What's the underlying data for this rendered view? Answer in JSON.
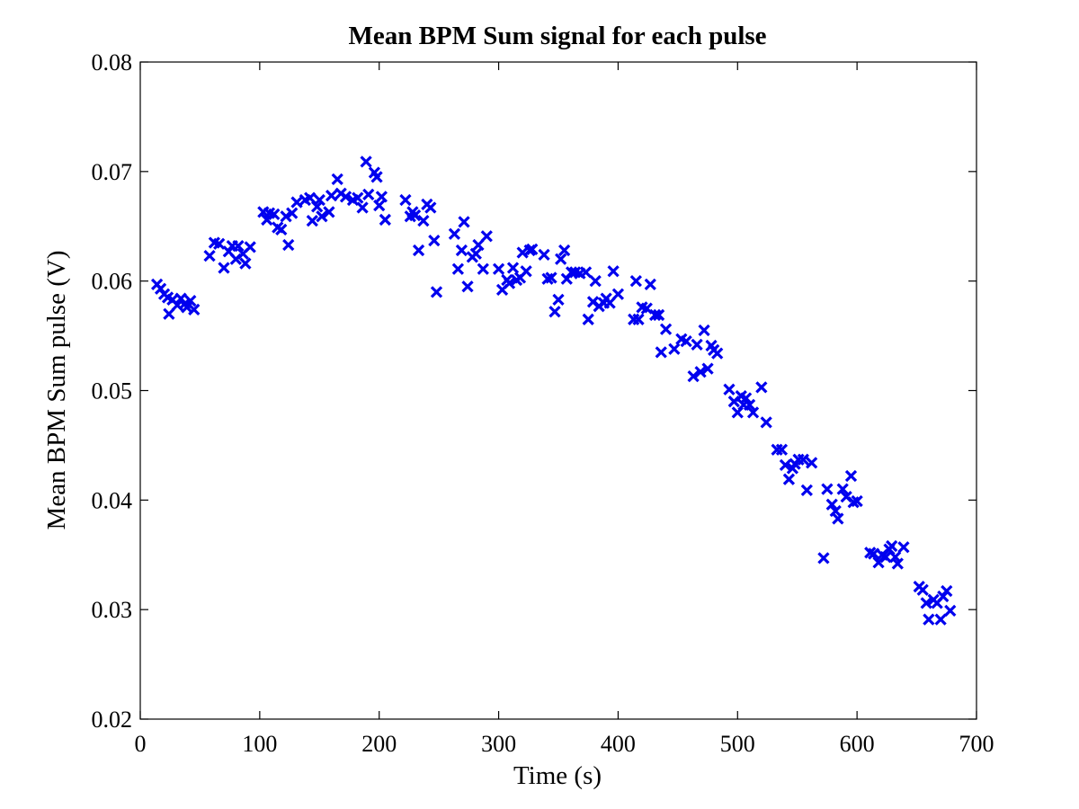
{
  "chart_data": {
    "type": "scatter",
    "title": "Mean BPM Sum signal for each pulse",
    "xlabel": "Time (s)",
    "ylabel": "Mean BPM Sum pulse (V)",
    "xlim": [
      0,
      700
    ],
    "ylim": [
      0.02,
      0.08
    ],
    "xticks": [
      "0",
      "100",
      "200",
      "300",
      "400",
      "500",
      "600",
      "700"
    ],
    "yticks": [
      "0.02",
      "0.03",
      "0.04",
      "0.05",
      "0.06",
      "0.07",
      "0.08"
    ],
    "grid": false,
    "marker": "x",
    "marker_color": "#0000ee",
    "series": [
      {
        "points": [
          [
            14,
            0.0597
          ],
          [
            17,
            0.0593
          ],
          [
            20,
            0.0588
          ],
          [
            23,
            0.0585
          ],
          [
            24,
            0.057
          ],
          [
            27,
            0.0583
          ],
          [
            31,
            0.0578
          ],
          [
            34,
            0.0584
          ],
          [
            37,
            0.0579
          ],
          [
            39,
            0.0576
          ],
          [
            42,
            0.0582
          ],
          [
            45,
            0.0574
          ],
          [
            58,
            0.0623
          ],
          [
            62,
            0.0635
          ],
          [
            66,
            0.0634
          ],
          [
            70,
            0.0612
          ],
          [
            74,
            0.0627
          ],
          [
            77,
            0.0632
          ],
          [
            80,
            0.062
          ],
          [
            82,
            0.0632
          ],
          [
            86,
            0.0625
          ],
          [
            88,
            0.0616
          ],
          [
            92,
            0.0631
          ],
          [
            103,
            0.0663
          ],
          [
            106,
            0.0656
          ],
          [
            108,
            0.0662
          ],
          [
            112,
            0.0661
          ],
          [
            115,
            0.0649
          ],
          [
            118,
            0.0647
          ],
          [
            122,
            0.0659
          ],
          [
            124,
            0.0633
          ],
          [
            127,
            0.0662
          ],
          [
            131,
            0.0672
          ],
          [
            138,
            0.0674
          ],
          [
            142,
            0.0676
          ],
          [
            144,
            0.0655
          ],
          [
            148,
            0.0668
          ],
          [
            150,
            0.0674
          ],
          [
            152,
            0.0659
          ],
          [
            158,
            0.0663
          ],
          [
            160,
            0.0678
          ],
          [
            165,
            0.0693
          ],
          [
            168,
            0.068
          ],
          [
            172,
            0.0677
          ],
          [
            178,
            0.0674
          ],
          [
            182,
            0.0676
          ],
          [
            186,
            0.0667
          ],
          [
            189,
            0.0709
          ],
          [
            191,
            0.0679
          ],
          [
            196,
            0.0699
          ],
          [
            198,
            0.0695
          ],
          [
            200,
            0.0669
          ],
          [
            202,
            0.0677
          ],
          [
            205,
            0.0656
          ],
          [
            222,
            0.0674
          ],
          [
            226,
            0.0659
          ],
          [
            228,
            0.0663
          ],
          [
            230,
            0.066
          ],
          [
            233,
            0.0628
          ],
          [
            237,
            0.0655
          ],
          [
            240,
            0.067
          ],
          [
            243,
            0.0667
          ],
          [
            246,
            0.0637
          ],
          [
            248,
            0.059
          ],
          [
            263,
            0.0643
          ],
          [
            266,
            0.0611
          ],
          [
            269,
            0.0628
          ],
          [
            271,
            0.0654
          ],
          [
            274,
            0.0595
          ],
          [
            278,
            0.0622
          ],
          [
            281,
            0.0625
          ],
          [
            283,
            0.0633
          ],
          [
            287,
            0.0611
          ],
          [
            290,
            0.0641
          ],
          [
            300,
            0.0611
          ],
          [
            303,
            0.0592
          ],
          [
            307,
            0.0601
          ],
          [
            309,
            0.0598
          ],
          [
            312,
            0.0612
          ],
          [
            315,
            0.0601
          ],
          [
            318,
            0.0603
          ],
          [
            320,
            0.0626
          ],
          [
            323,
            0.0609
          ],
          [
            326,
            0.0628
          ],
          [
            328,
            0.0629
          ],
          [
            338,
            0.0624
          ],
          [
            341,
            0.0602
          ],
          [
            344,
            0.0603
          ],
          [
            347,
            0.0572
          ],
          [
            350,
            0.0583
          ],
          [
            352,
            0.062
          ],
          [
            355,
            0.0628
          ],
          [
            357,
            0.0602
          ],
          [
            361,
            0.0608
          ],
          [
            364,
            0.0608
          ],
          [
            368,
            0.0607
          ],
          [
            373,
            0.0608
          ],
          [
            375,
            0.0565
          ],
          [
            379,
            0.0581
          ],
          [
            381,
            0.06
          ],
          [
            384,
            0.0577
          ],
          [
            388,
            0.058
          ],
          [
            390,
            0.0584
          ],
          [
            393,
            0.058
          ],
          [
            396,
            0.0609
          ],
          [
            400,
            0.0588
          ],
          [
            413,
            0.0565
          ],
          [
            415,
            0.06
          ],
          [
            417,
            0.0565
          ],
          [
            420,
            0.0576
          ],
          [
            424,
            0.0575
          ],
          [
            427,
            0.0597
          ],
          [
            431,
            0.0569
          ],
          [
            434,
            0.0569
          ],
          [
            436,
            0.0535
          ],
          [
            440,
            0.0556
          ],
          [
            447,
            0.0538
          ],
          [
            453,
            0.0547
          ],
          [
            457,
            0.0545
          ],
          [
            463,
            0.0513
          ],
          [
            466,
            0.0542
          ],
          [
            469,
            0.0517
          ],
          [
            472,
            0.0555
          ],
          [
            475,
            0.052
          ],
          [
            478,
            0.0541
          ],
          [
            480,
            0.0537
          ],
          [
            483,
            0.0534
          ],
          [
            493,
            0.0501
          ],
          [
            497,
            0.049
          ],
          [
            500,
            0.048
          ],
          [
            503,
            0.0495
          ],
          [
            505,
            0.0487
          ],
          [
            507,
            0.0493
          ],
          [
            510,
            0.0487
          ],
          [
            513,
            0.048
          ],
          [
            520,
            0.0503
          ],
          [
            524,
            0.0471
          ],
          [
            533,
            0.0446
          ],
          [
            537,
            0.0446
          ],
          [
            540,
            0.0432
          ],
          [
            543,
            0.0419
          ],
          [
            546,
            0.0429
          ],
          [
            548,
            0.0433
          ],
          [
            551,
            0.0437
          ],
          [
            555,
            0.0437
          ],
          [
            558,
            0.0409
          ],
          [
            562,
            0.0434
          ],
          [
            572,
            0.0347
          ],
          [
            575,
            0.041
          ],
          [
            579,
            0.0396
          ],
          [
            582,
            0.039
          ],
          [
            584,
            0.0383
          ],
          [
            588,
            0.041
          ],
          [
            591,
            0.0403
          ],
          [
            595,
            0.0422
          ],
          [
            597,
            0.0398
          ],
          [
            600,
            0.0399
          ],
          [
            611,
            0.0352
          ],
          [
            614,
            0.0351
          ],
          [
            618,
            0.0343
          ],
          [
            621,
            0.035
          ],
          [
            624,
            0.0348
          ],
          [
            627,
            0.0355
          ],
          [
            629,
            0.0358
          ],
          [
            632,
            0.0348
          ],
          [
            634,
            0.0342
          ],
          [
            639,
            0.0357
          ],
          [
            652,
            0.0321
          ],
          [
            655,
            0.0318
          ],
          [
            658,
            0.0306
          ],
          [
            660,
            0.0291
          ],
          [
            664,
            0.0309
          ],
          [
            667,
            0.0306
          ],
          [
            670,
            0.0291
          ],
          [
            672,
            0.0312
          ],
          [
            675,
            0.0317
          ],
          [
            678,
            0.0299
          ]
        ]
      }
    ]
  }
}
